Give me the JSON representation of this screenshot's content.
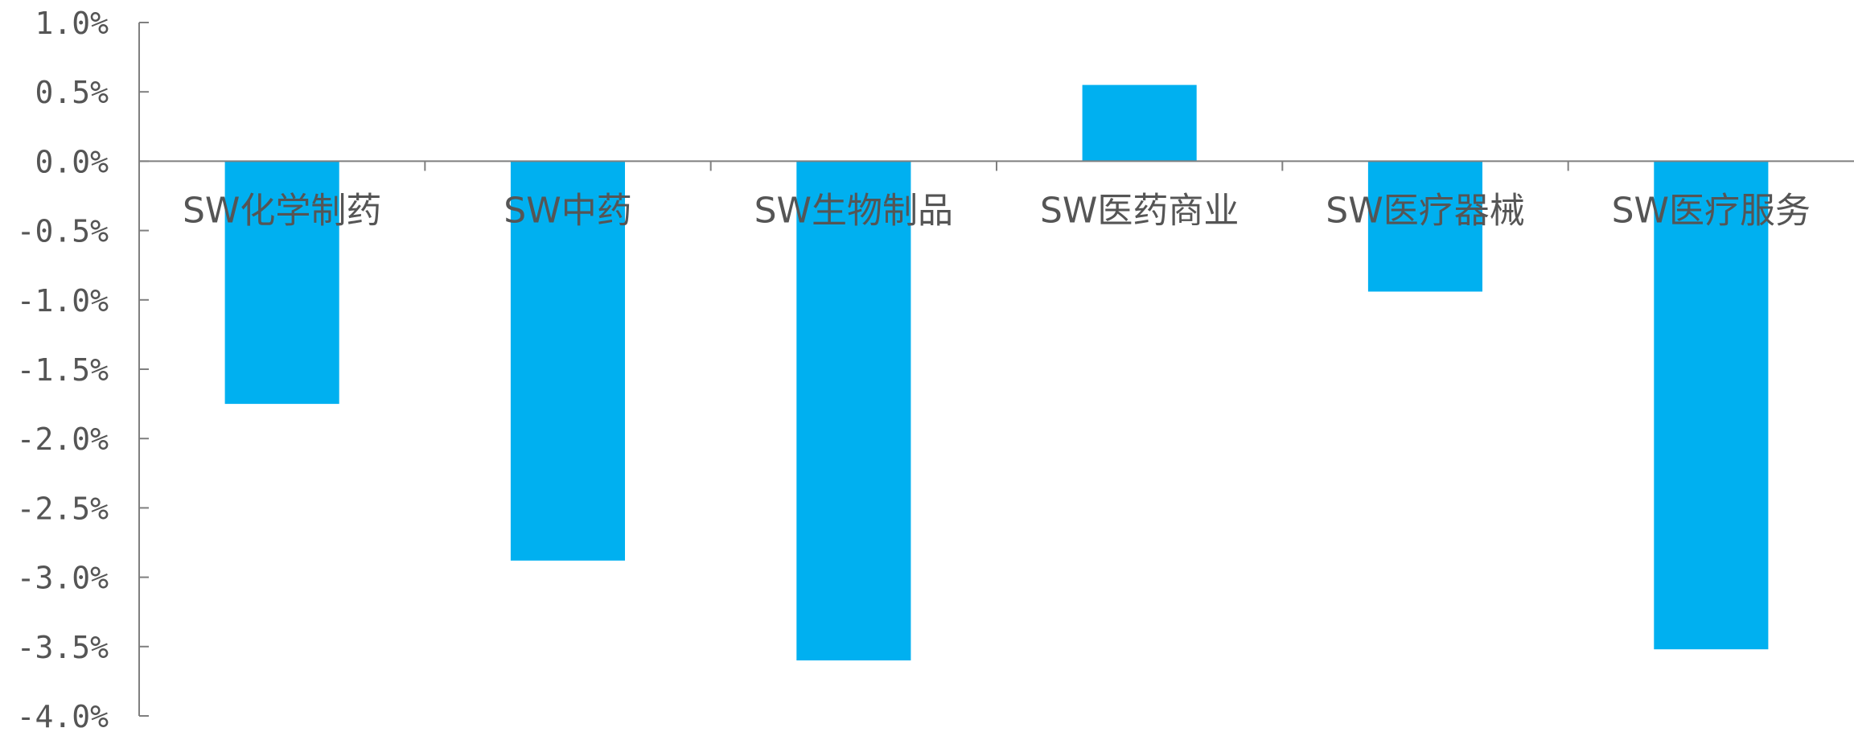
{
  "chart_data": {
    "type": "bar",
    "title": "",
    "xlabel": "",
    "ylabel": "",
    "categories": [
      "SW化学制药",
      "SW中药",
      "SW生物制品",
      "SW医药商业",
      "SW医疗器械",
      "SW医疗服务"
    ],
    "values": [
      -1.75,
      -2.88,
      -3.6,
      0.55,
      -0.94,
      -3.52
    ],
    "ylim": [
      -4.0,
      1.0
    ],
    "yticks": [
      1.0,
      0.5,
      0.0,
      -0.5,
      -1.0,
      -1.5,
      -2.0,
      -2.5,
      -3.0,
      -3.5,
      -4.0
    ],
    "ytick_labels": [
      "1.0%",
      "0.5%",
      "0.0%",
      "-0.5%",
      "-1.0%",
      "-1.5%",
      "-2.0%",
      "-2.5%",
      "-3.0%",
      "-3.5%",
      "-4.0%"
    ],
    "grid": false,
    "legend": "none",
    "bar_color": "#00B0F0",
    "axis_color": "#7F7F7F",
    "text_color": "#555555"
  }
}
